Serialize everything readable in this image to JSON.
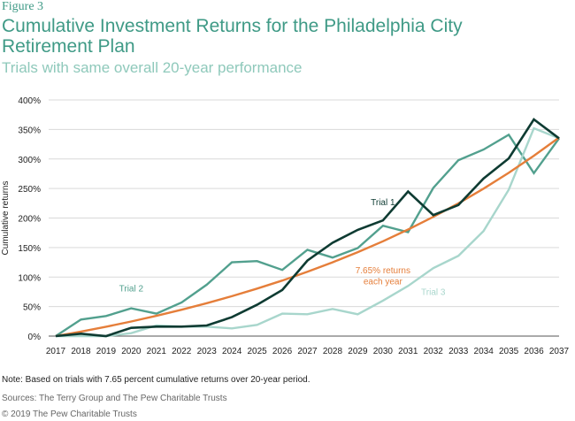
{
  "figure_label": "Figure 3",
  "title": "Cumulative Investment Returns for the Philadelphia City Retirement Plan",
  "subtitle": "Trials with same overall 20-year performance",
  "note": "Note: Based on trials with 7.65 percent cumulative returns over 20-year period.",
  "sources": "Sources: The Terry Group and The Pew Charitable Trusts",
  "copyright": "© 2019 The Pew Charitable Trusts",
  "chart_data": {
    "type": "line",
    "ylabel": "Cumulative returns",
    "ylim": [
      0,
      400
    ],
    "ytick_values": [
      0,
      50,
      100,
      150,
      200,
      250,
      300,
      350,
      400
    ],
    "ytick_labels": [
      "0%",
      "50%",
      "100%",
      "150%",
      "200%",
      "250%",
      "300%",
      "350%",
      "400%"
    ],
    "x": [
      "2017",
      "2018",
      "2019",
      "2020",
      "2021",
      "2022",
      "2023",
      "2024",
      "2025",
      "2026",
      "2027",
      "2028",
      "2029",
      "2030",
      "2031",
      "2032",
      "2033",
      "2034",
      "2035",
      "2036",
      "2037"
    ],
    "grid": "horizontal",
    "series": [
      {
        "name": "Trial 2",
        "color": "#52a08e",
        "values": [
          0,
          28,
          34,
          47,
          38,
          57,
          87,
          125,
          127,
          112,
          146,
          133,
          149,
          187,
          176,
          251,
          298,
          316,
          341,
          276,
          335
        ]
      },
      {
        "name": "Trial 3",
        "color": "#a8d6cc",
        "values": [
          0,
          0,
          0,
          5,
          18,
          16,
          16,
          13,
          19,
          38,
          37,
          46,
          37,
          60,
          85,
          115,
          136,
          178,
          248,
          352,
          335
        ]
      },
      {
        "name": "7.65% returns each year",
        "color": "#e57e3a",
        "values": [
          0,
          7.7,
          15.9,
          24.7,
          34.3,
          44.6,
          55.7,
          67.6,
          80.4,
          94.1,
          109.0,
          124.9,
          142.1,
          160.6,
          180.5,
          201.9,
          224.9,
          249.8,
          276.5,
          305.4,
          336.4
        ]
      },
      {
        "name": "Trial 1",
        "color": "#0e3b32",
        "values": [
          0,
          4,
          0,
          14,
          16,
          16,
          18,
          32,
          53,
          78,
          128,
          158,
          180,
          196,
          245,
          205,
          222,
          267,
          301,
          367,
          335
        ]
      }
    ],
    "annotations": [
      {
        "text": "Trial 1",
        "color": "#0e3b32",
        "x": "2030",
        "y": 222
      },
      {
        "text": "Trial 2",
        "color": "#52a08e",
        "x": "2020",
        "y": 76
      },
      {
        "text": "Trial 3",
        "color": "#a8d6cc",
        "x": "2032",
        "y": 70
      },
      {
        "text": "7.65% returns",
        "color": "#e57e3a",
        "x": "2030",
        "y": 106
      },
      {
        "text": "each year",
        "color": "#e57e3a",
        "x": "2030",
        "y": 88
      }
    ]
  }
}
